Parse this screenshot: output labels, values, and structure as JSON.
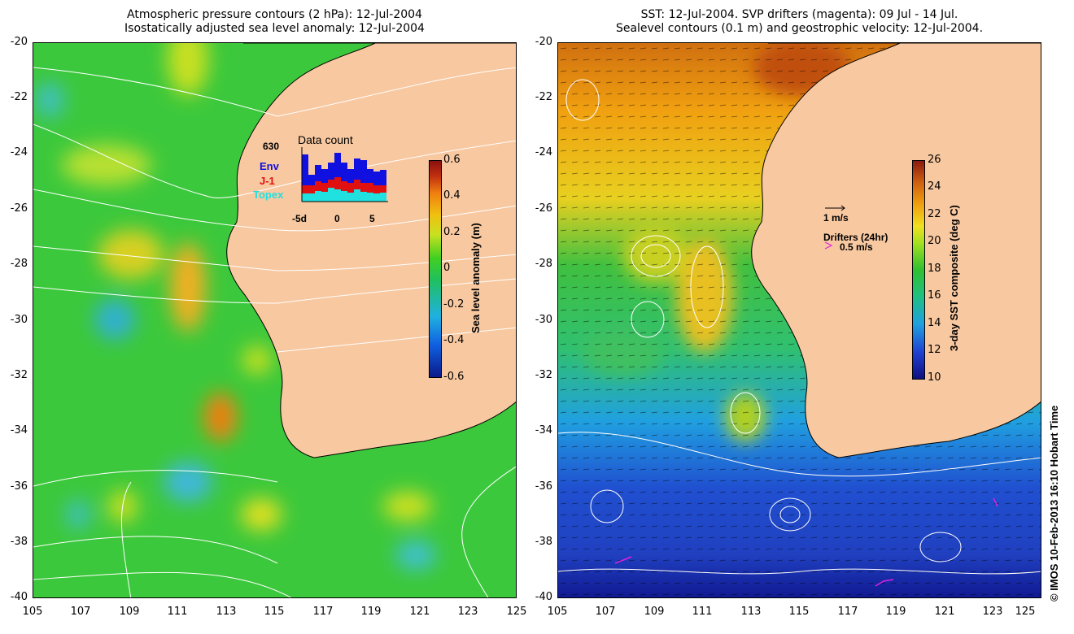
{
  "left_panel": {
    "title_line1": "Atmospheric pressure contours (2 hPa): 12-Jul-2004",
    "title_line2": "Isostatically adjusted sea level anomaly: 12-Jul-2004",
    "colorbar": {
      "label": "Sea level anomaly (m)",
      "ticks": [
        "0.6",
        "0.4",
        "0.2",
        "0",
        "-0.2",
        "-0.4",
        "-0.6"
      ]
    },
    "inset": {
      "title": "Data count",
      "max_label": "630",
      "legend": [
        {
          "label": "Env",
          "color": "#1010e0"
        },
        {
          "label": "J-1",
          "color": "#e01010"
        },
        {
          "label": "Topex",
          "color": "#20e0e0"
        }
      ],
      "xticks": [
        "-5d",
        "0",
        "5"
      ]
    }
  },
  "right_panel": {
    "title_line1": "SST: 12-Jul-2004. SVP drifters (magenta): 09 Jul - 14 Jul.",
    "title_line2": "Sealevel contours (0.1 m) and geostrophic velocity: 12-Jul-2004.",
    "colorbar": {
      "label": "3-day SST composite (deg C)",
      "ticks": [
        "26",
        "24",
        "22",
        "20",
        "18",
        "16",
        "14",
        "12",
        "10"
      ]
    },
    "velocity_key": "1 m/s",
    "drifter_key_title": "Drifters (24hr)",
    "drifter_key_value": "0.5 m/s",
    "drifter_color": "#e020e0"
  },
  "axes": {
    "yticks": [
      "-20",
      "-22",
      "-24",
      "-26",
      "-28",
      "-30",
      "-32",
      "-34",
      "-36",
      "-38",
      "-40"
    ],
    "xticks": [
      "105",
      "107",
      "109",
      "111",
      "113",
      "115",
      "117",
      "119",
      "121",
      "123",
      "125"
    ]
  },
  "colors": {
    "land": "#f8c8a0",
    "coast": "#000000",
    "contour": "#ffffff"
  },
  "watermark": "© IMOS 10-Feb-2013 16:10 Hobart Time"
}
